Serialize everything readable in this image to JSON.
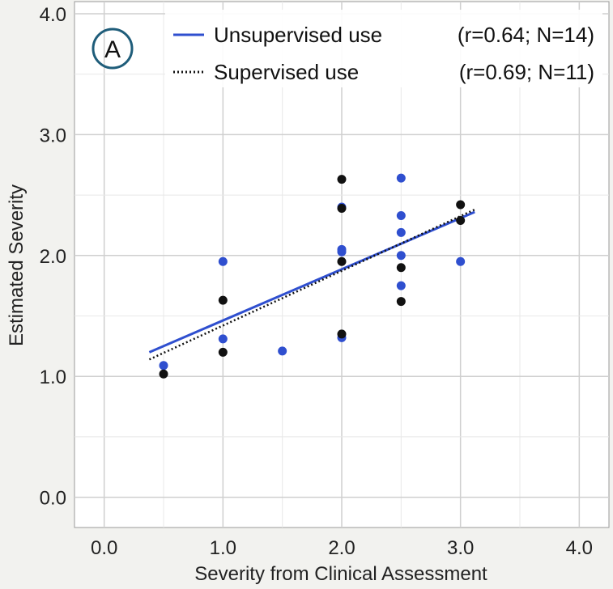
{
  "chart_data": {
    "type": "scatter",
    "panel_label": "A",
    "xlabel": "Severity from Clinical Assessment",
    "ylabel": "Estimated Severity",
    "xlim": [
      -0.25,
      4.25
    ],
    "ylim": [
      -0.25,
      4.1
    ],
    "x_ticks": [
      0,
      1,
      2,
      3,
      4
    ],
    "y_ticks": [
      0,
      1,
      2,
      3,
      4
    ],
    "x_tick_labels": [
      "0.0",
      "1.0",
      "2.0",
      "3.0",
      "4.0"
    ],
    "y_tick_labels": [
      "0.0",
      "1.0",
      "2.0",
      "3.0",
      "4.0"
    ],
    "grid": true,
    "legend_position": "top-right",
    "series": [
      {
        "name": "Unsupervised use",
        "stats": "(r=0.64; N=14)",
        "color": "#2f4fcf",
        "line_style": "solid",
        "fit_line": {
          "x": [
            0.38,
            3.12
          ],
          "y": [
            1.2,
            2.36
          ]
        },
        "points": [
          [
            0.5,
            1.09
          ],
          [
            1.0,
            1.95
          ],
          [
            1.0,
            1.31
          ],
          [
            1.5,
            1.21
          ],
          [
            2.0,
            2.4
          ],
          [
            2.0,
            2.05
          ],
          [
            2.0,
            2.03
          ],
          [
            2.0,
            1.32
          ],
          [
            2.5,
            2.64
          ],
          [
            2.5,
            2.33
          ],
          [
            2.5,
            2.19
          ],
          [
            2.5,
            2.0
          ],
          [
            2.5,
            1.75
          ],
          [
            3.0,
            1.95
          ]
        ]
      },
      {
        "name": "Supervised use",
        "stats": "(r=0.69; N=11)",
        "color": "#111111",
        "line_style": "dotted",
        "fit_line": {
          "x": [
            0.38,
            3.12
          ],
          "y": [
            1.14,
            2.38
          ]
        },
        "points": [
          [
            0.5,
            1.02
          ],
          [
            1.0,
            1.63
          ],
          [
            1.0,
            1.2
          ],
          [
            2.0,
            2.63
          ],
          [
            2.0,
            1.95
          ],
          [
            2.0,
            1.35
          ],
          [
            2.5,
            1.9
          ],
          [
            2.5,
            1.62
          ],
          [
            3.0,
            2.42
          ],
          [
            3.0,
            2.29
          ],
          [
            2.0,
            2.39
          ]
        ]
      }
    ]
  },
  "colors": {
    "background": "#f2f2ef",
    "plot_area": "#ffffff",
    "grid": "#cfcfcf",
    "panel_circle": "#1f5d7a"
  }
}
